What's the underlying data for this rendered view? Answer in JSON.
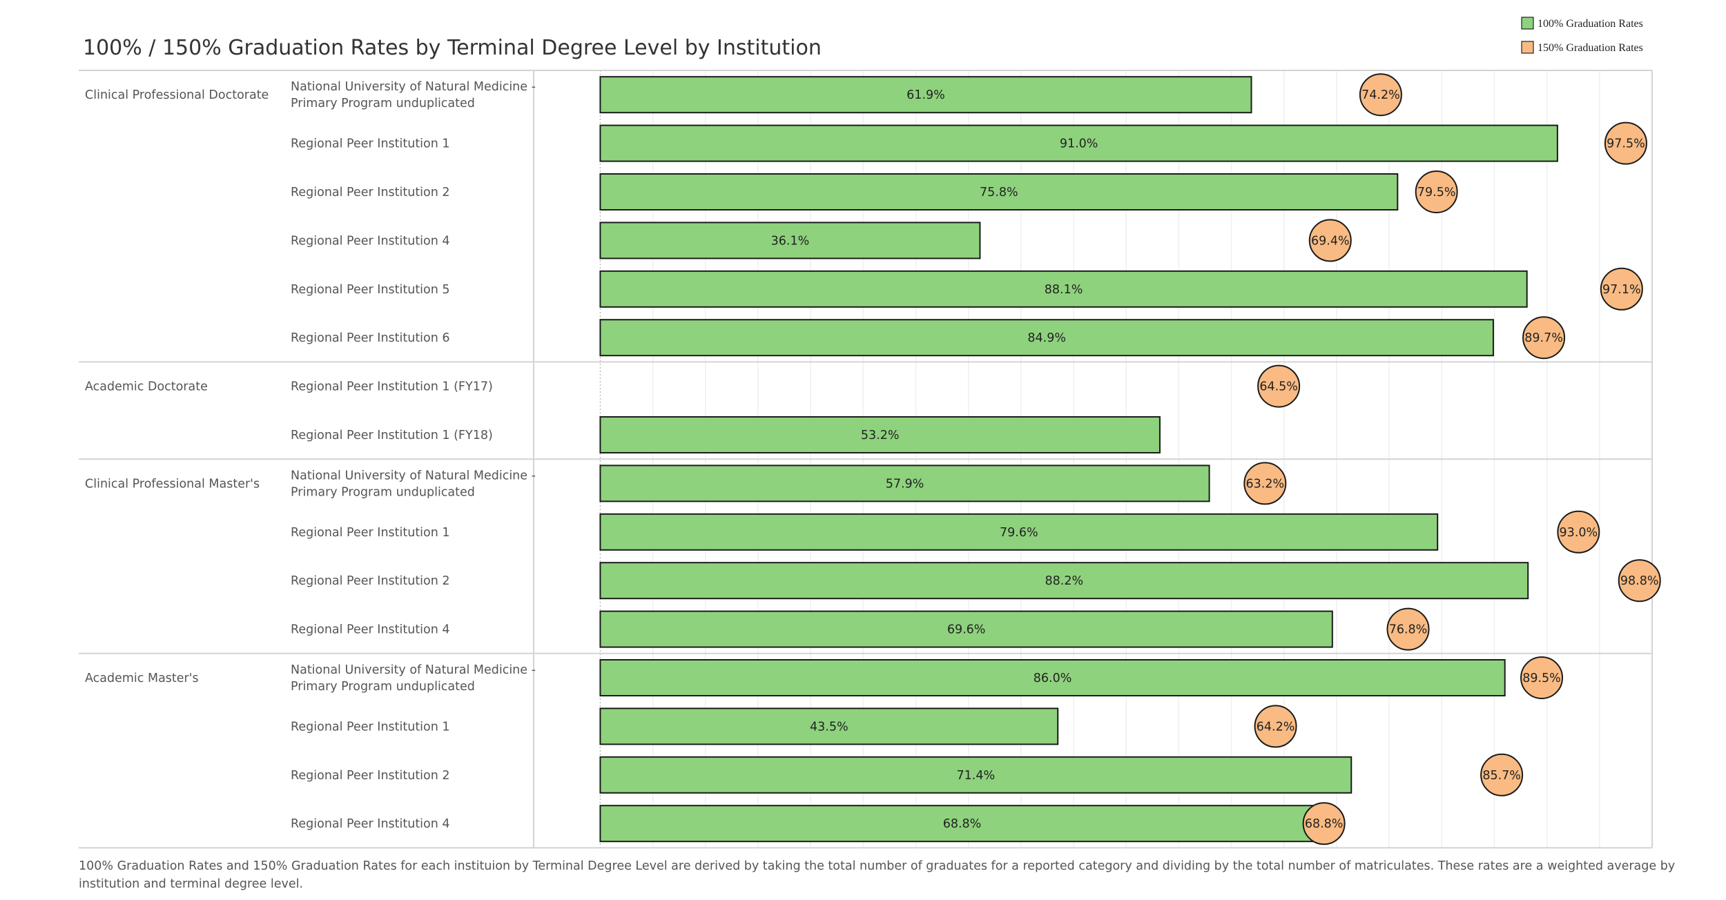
{
  "chart_data": {
    "type": "bar",
    "title": "100% / 150% Graduation Rates by Terminal Degree Level by Institution",
    "legend": {
      "placement": "top-right",
      "entries": [
        {
          "name": "100% Graduation Rates",
          "color": "#8ed27d"
        },
        {
          "name": "150% Graduation Rates",
          "color": "#f9bb83"
        }
      ]
    },
    "xlim": [
      -6,
      100
    ],
    "grid": true,
    "groups": [
      {
        "label": "Clinical Professional Doctorate",
        "rows": [
          {
            "label": "National University of Natural Medicine - Primary Program unduplicated",
            "lines": [
              "National University of Natural Medicine -",
              "Primary Program unduplicated"
            ],
            "rate100": 61.9,
            "rate100_label": "61.9%",
            "rate150": 74.2,
            "rate150_label": "74.2%"
          },
          {
            "label": "Regional Peer Institution 1",
            "lines": [
              "Regional Peer Institution 1"
            ],
            "rate100": 91.0,
            "rate100_label": "91.0%",
            "rate150": 97.5,
            "rate150_label": "97.5%"
          },
          {
            "label": "Regional Peer Institution 2",
            "lines": [
              "Regional Peer Institution 2"
            ],
            "rate100": 75.8,
            "rate100_label": "75.8%",
            "rate150": 79.5,
            "rate150_label": "79.5%"
          },
          {
            "label": "Regional Peer Institution 4",
            "lines": [
              "Regional Peer Institution 4"
            ],
            "rate100": 36.1,
            "rate100_label": "36.1%",
            "rate150": 69.4,
            "rate150_label": "69.4%"
          },
          {
            "label": "Regional Peer Institution 5",
            "lines": [
              "Regional Peer Institution 5"
            ],
            "rate100": 88.1,
            "rate100_label": "88.1%",
            "rate150": 97.1,
            "rate150_label": "97.1%"
          },
          {
            "label": "Regional Peer Institution 6",
            "lines": [
              "Regional Peer Institution 6"
            ],
            "rate100": 84.9,
            "rate100_label": "84.9%",
            "rate150": 89.7,
            "rate150_label": "89.7%"
          }
        ]
      },
      {
        "label": "Academic Doctorate",
        "rows": [
          {
            "label": "Regional Peer Institution 1 (FY17)",
            "lines": [
              "Regional Peer Institution 1 (FY17)"
            ],
            "rate100": null,
            "rate100_label": "",
            "rate150": 64.5,
            "rate150_label": "64.5%"
          },
          {
            "label": "Regional Peer Institution 1 (FY18)",
            "lines": [
              "Regional Peer Institution 1 (FY18)"
            ],
            "rate100": 53.2,
            "rate100_label": "53.2%",
            "rate150": null,
            "rate150_label": ""
          }
        ]
      },
      {
        "label": "Clinical Professional Master's",
        "rows": [
          {
            "label": "National University of Natural Medicine - Primary Program unduplicated",
            "lines": [
              "National University of Natural Medicine -",
              "Primary Program unduplicated"
            ],
            "rate100": 57.9,
            "rate100_label": "57.9%",
            "rate150": 63.2,
            "rate150_label": "63.2%"
          },
          {
            "label": "Regional Peer Institution 1",
            "lines": [
              "Regional Peer Institution 1"
            ],
            "rate100": 79.6,
            "rate100_label": "79.6%",
            "rate150": 93.0,
            "rate150_label": "93.0%"
          },
          {
            "label": "Regional Peer Institution 2",
            "lines": [
              "Regional Peer Institution 2"
            ],
            "rate100": 88.2,
            "rate100_label": "88.2%",
            "rate150": 98.8,
            "rate150_label": "98.8%"
          },
          {
            "label": "Regional Peer Institution 4",
            "lines": [
              "Regional Peer Institution 4"
            ],
            "rate100": 69.6,
            "rate100_label": "69.6%",
            "rate150": 76.8,
            "rate150_label": "76.8%"
          }
        ]
      },
      {
        "label": "Academic Master's",
        "rows": [
          {
            "label": "National University of Natural Medicine - Primary Program unduplicated",
            "lines": [
              "National University of Natural Medicine -",
              "Primary Program unduplicated"
            ],
            "rate100": 86.0,
            "rate100_label": "86.0%",
            "rate150": 89.5,
            "rate150_label": "89.5%"
          },
          {
            "label": "Regional Peer Institution 1",
            "lines": [
              "Regional Peer Institution 1"
            ],
            "rate100": 43.5,
            "rate100_label": "43.5%",
            "rate150": 64.2,
            "rate150_label": "64.2%"
          },
          {
            "label": "Regional Peer Institution 2",
            "lines": [
              "Regional Peer Institution 2"
            ],
            "rate100": 71.4,
            "rate100_label": "71.4%",
            "rate150": 85.7,
            "rate150_label": "85.7%"
          },
          {
            "label": "Regional Peer Institution 4",
            "lines": [
              "Regional Peer Institution 4"
            ],
            "rate100": 68.8,
            "rate100_label": "68.8%",
            "rate150": 68.8,
            "rate150_label": "68.8%"
          }
        ]
      }
    ],
    "footnote_lines": [
      "100% Graduation Rates and 150% Graduation Rates for each instituion by Terminal Degree Level are derived by taking the total number of graduates for a reported category and dividing by the total number of matriculates. These rates are a weighted average by",
      "institution and terminal degree level."
    ]
  }
}
